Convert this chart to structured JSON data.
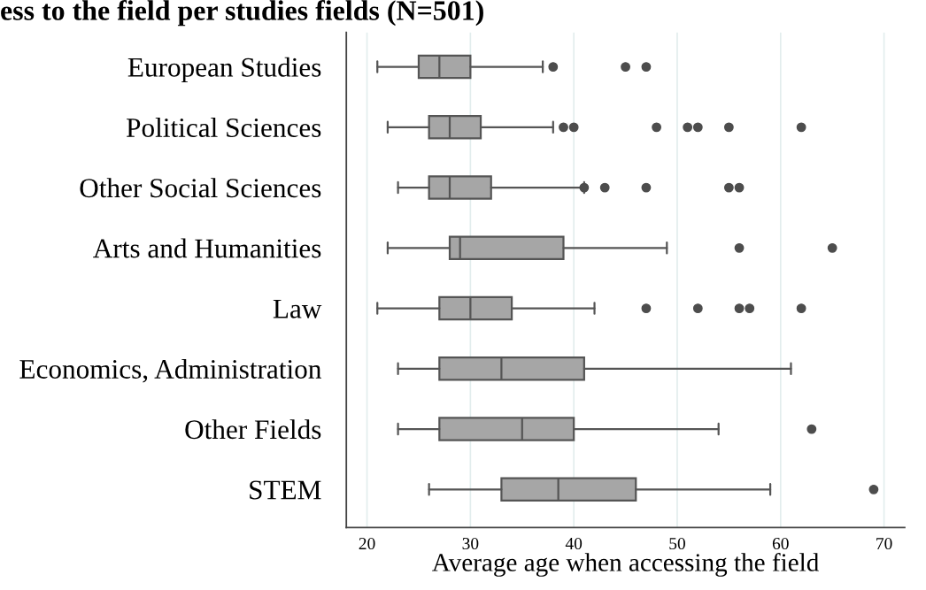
{
  "chart_data": {
    "type": "box",
    "orientation": "horizontal",
    "title": "ess to the field per studies fields (N=501)",
    "xlabel": "Average age when accessing the field",
    "categories": [
      "European Studies",
      "Political Sciences",
      "Other Social Sciences",
      "Arts and Humanities",
      "Law",
      "Economics, Administration",
      "Other Fields",
      "STEM"
    ],
    "boxes": [
      {
        "low": 21,
        "q1": 25,
        "median": 27,
        "q3": 30,
        "high": 37,
        "outliers": [
          38,
          45,
          47
        ]
      },
      {
        "low": 22,
        "q1": 26,
        "median": 28,
        "q3": 31,
        "high": 38,
        "outliers": [
          39,
          40,
          48,
          51,
          52,
          55,
          62
        ]
      },
      {
        "low": 23,
        "q1": 26,
        "median": 28,
        "q3": 32,
        "high": 41,
        "outliers": [
          41,
          43,
          47,
          55,
          56
        ]
      },
      {
        "low": 22,
        "q1": 28,
        "median": 29,
        "q3": 39,
        "high": 49,
        "outliers": [
          56,
          65
        ]
      },
      {
        "low": 21,
        "q1": 27,
        "median": 30,
        "q3": 34,
        "high": 42,
        "outliers": [
          47,
          52,
          56,
          57,
          62
        ]
      },
      {
        "low": 23,
        "q1": 27,
        "median": 33,
        "q3": 41,
        "high": 61
      },
      {
        "low": 23,
        "q1": 27,
        "median": 35,
        "q3": 40,
        "high": 54,
        "outliers": [
          63
        ]
      },
      {
        "low": 26,
        "q1": 33,
        "median": 38.5,
        "q3": 46,
        "high": 59,
        "outliers": [
          69
        ]
      }
    ],
    "color": "#a6a6a6",
    "xlim": [
      18,
      72
    ],
    "xticks": [
      20,
      30,
      40,
      50,
      60,
      70
    ],
    "grid": "x"
  }
}
